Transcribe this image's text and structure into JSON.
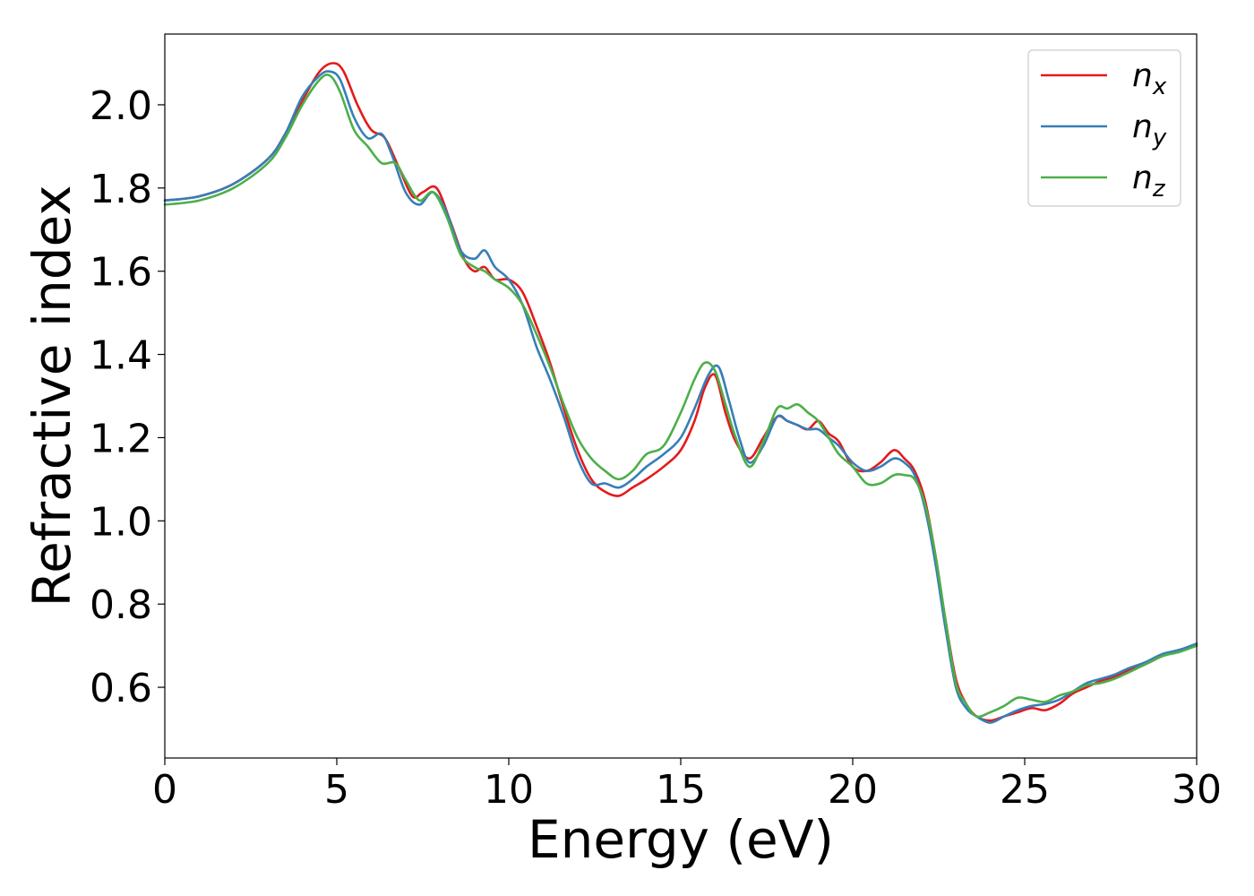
{
  "chart_data": {
    "type": "line",
    "xlabel": "Energy (eV)",
    "ylabel": "Refractive index",
    "xlim": [
      0,
      30
    ],
    "ylim": [
      0.43,
      2.17
    ],
    "xticks": [
      0,
      5,
      10,
      15,
      20,
      25,
      30
    ],
    "xtick_labels": [
      "0",
      "5",
      "10",
      "15",
      "20",
      "25",
      "30"
    ],
    "yticks": [
      0.6,
      0.8,
      1.0,
      1.2,
      1.4,
      1.6,
      1.8,
      2.0
    ],
    "ytick_labels": [
      "0.6",
      "0.8",
      "1.0",
      "1.2",
      "1.4",
      "1.6",
      "1.8",
      "2.0"
    ],
    "grid": false,
    "legend_position": "top-right",
    "series": [
      {
        "name": "n_x",
        "legend_main": "n",
        "legend_sub": "x",
        "color": "#e41a1c",
        "x": [
          0,
          1,
          2,
          3,
          3.5,
          4,
          4.5,
          4.9,
          5.2,
          5.6,
          6.0,
          6.4,
          6.8,
          7.2,
          7.5,
          7.9,
          8.3,
          8.7,
          9.0,
          9.3,
          9.6,
          10.0,
          10.4,
          10.8,
          11.2,
          11.6,
          12.0,
          12.4,
          12.8,
          13.2,
          13.6,
          14.0,
          14.5,
          15.0,
          15.4,
          15.7,
          16.0,
          16.3,
          16.6,
          17.0,
          17.4,
          17.8,
          18.1,
          18.4,
          18.7,
          19.0,
          19.3,
          19.6,
          20.0,
          20.4,
          20.8,
          21.2,
          21.5,
          21.8,
          22.1,
          22.4,
          22.7,
          23.0,
          23.3,
          23.6,
          24.0,
          24.4,
          24.8,
          25.2,
          25.6,
          26.0,
          26.4,
          26.8,
          27.2,
          27.6,
          28.0,
          28.5,
          29.0,
          29.5,
          30.0
        ],
        "y": [
          1.77,
          1.78,
          1.81,
          1.87,
          1.93,
          2.01,
          2.08,
          2.1,
          2.08,
          2.0,
          1.94,
          1.92,
          1.85,
          1.78,
          1.79,
          1.8,
          1.72,
          1.63,
          1.6,
          1.61,
          1.58,
          1.58,
          1.55,
          1.47,
          1.38,
          1.27,
          1.17,
          1.1,
          1.07,
          1.06,
          1.08,
          1.1,
          1.13,
          1.17,
          1.24,
          1.32,
          1.35,
          1.26,
          1.19,
          1.15,
          1.2,
          1.25,
          1.24,
          1.23,
          1.22,
          1.24,
          1.21,
          1.19,
          1.13,
          1.12,
          1.14,
          1.17,
          1.15,
          1.12,
          1.05,
          0.92,
          0.76,
          0.62,
          0.56,
          0.53,
          0.52,
          0.53,
          0.54,
          0.55,
          0.545,
          0.56,
          0.585,
          0.6,
          0.615,
          0.625,
          0.64,
          0.655,
          0.675,
          0.69,
          0.7
        ]
      },
      {
        "name": "n_y",
        "legend_main": "n",
        "legend_sub": "y",
        "color": "#377eb8",
        "x": [
          0,
          1,
          2,
          3,
          3.5,
          4,
          4.5,
          4.8,
          5.1,
          5.5,
          5.9,
          6.3,
          6.6,
          7.0,
          7.4,
          7.8,
          8.2,
          8.6,
          9.0,
          9.3,
          9.6,
          10.0,
          10.4,
          10.8,
          11.2,
          11.6,
          12.0,
          12.4,
          12.8,
          13.2,
          13.6,
          14.0,
          14.5,
          15.0,
          15.4,
          15.8,
          16.1,
          16.4,
          16.7,
          17.0,
          17.4,
          17.8,
          18.1,
          18.4,
          18.7,
          19.0,
          19.3,
          19.6,
          20.0,
          20.4,
          20.8,
          21.2,
          21.5,
          21.8,
          22.1,
          22.4,
          22.7,
          23.0,
          23.3,
          23.6,
          24.0,
          24.4,
          24.8,
          25.2,
          25.6,
          26.0,
          26.4,
          26.8,
          27.2,
          27.6,
          28.0,
          28.5,
          29.0,
          29.5,
          30.0
        ],
        "y": [
          1.77,
          1.78,
          1.81,
          1.87,
          1.93,
          2.02,
          2.07,
          2.08,
          2.06,
          1.97,
          1.92,
          1.93,
          1.88,
          1.79,
          1.76,
          1.79,
          1.74,
          1.65,
          1.63,
          1.65,
          1.61,
          1.58,
          1.52,
          1.42,
          1.34,
          1.25,
          1.15,
          1.09,
          1.09,
          1.08,
          1.1,
          1.13,
          1.16,
          1.2,
          1.27,
          1.35,
          1.37,
          1.29,
          1.2,
          1.14,
          1.18,
          1.25,
          1.24,
          1.23,
          1.22,
          1.22,
          1.2,
          1.18,
          1.14,
          1.12,
          1.13,
          1.15,
          1.14,
          1.11,
          1.03,
          0.9,
          0.74,
          0.6,
          0.55,
          0.53,
          0.515,
          0.53,
          0.545,
          0.555,
          0.56,
          0.57,
          0.59,
          0.61,
          0.62,
          0.63,
          0.645,
          0.66,
          0.68,
          0.69,
          0.705
        ]
      },
      {
        "name": "n_z",
        "legend_main": "n",
        "legend_sub": "z",
        "color": "#4daf4a",
        "x": [
          0,
          1,
          2,
          3,
          3.5,
          4,
          4.5,
          4.8,
          5.1,
          5.5,
          5.9,
          6.3,
          6.7,
          7.0,
          7.4,
          7.8,
          8.2,
          8.6,
          9.0,
          9.3,
          9.6,
          10.0,
          10.4,
          10.8,
          11.2,
          11.6,
          12.0,
          12.4,
          12.8,
          13.2,
          13.6,
          14.0,
          14.5,
          15.0,
          15.4,
          15.7,
          16.0,
          16.3,
          16.6,
          17.0,
          17.4,
          17.8,
          18.1,
          18.4,
          18.7,
          19.0,
          19.3,
          19.6,
          20.0,
          20.4,
          20.8,
          21.2,
          21.5,
          21.8,
          22.1,
          22.4,
          22.7,
          23.0,
          23.3,
          23.6,
          24.0,
          24.4,
          24.8,
          25.2,
          25.6,
          26.0,
          26.4,
          26.8,
          27.2,
          27.6,
          28.0,
          28.5,
          29.0,
          29.5,
          30.0
        ],
        "y": [
          1.76,
          1.77,
          1.8,
          1.86,
          1.92,
          2.0,
          2.06,
          2.07,
          2.03,
          1.94,
          1.9,
          1.86,
          1.86,
          1.82,
          1.77,
          1.79,
          1.73,
          1.64,
          1.61,
          1.6,
          1.58,
          1.56,
          1.52,
          1.45,
          1.37,
          1.28,
          1.2,
          1.15,
          1.12,
          1.1,
          1.12,
          1.16,
          1.18,
          1.26,
          1.34,
          1.38,
          1.36,
          1.28,
          1.2,
          1.13,
          1.19,
          1.27,
          1.27,
          1.28,
          1.26,
          1.24,
          1.2,
          1.16,
          1.13,
          1.09,
          1.09,
          1.11,
          1.11,
          1.1,
          1.04,
          0.92,
          0.76,
          0.61,
          0.56,
          0.53,
          0.54,
          0.555,
          0.575,
          0.57,
          0.565,
          0.58,
          0.59,
          0.605,
          0.61,
          0.62,
          0.635,
          0.655,
          0.675,
          0.685,
          0.7
        ]
      }
    ]
  }
}
